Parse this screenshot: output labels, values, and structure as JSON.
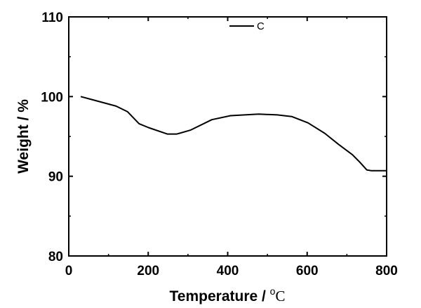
{
  "chart_data": {
    "type": "line",
    "title": "",
    "xlabel": "Temperature / ",
    "xlabel_unit": "oC",
    "ylabel": "Weight / %",
    "xlim": [
      0,
      800
    ],
    "ylim": [
      80,
      110
    ],
    "xticks": [
      "0",
      "200",
      "400",
      "600",
      "800"
    ],
    "yticks": [
      "80",
      "90",
      "100",
      "110"
    ],
    "grid": false,
    "legend": "top-center",
    "series": [
      {
        "name": "C",
        "color": "#000000",
        "x": [
          30,
          60,
          119,
          148,
          177,
          201,
          248,
          272,
          307,
          360,
          407,
          478,
          525,
          561,
          602,
          644,
          679,
          714,
          732,
          750,
          761,
          800
        ],
        "y": [
          100.0,
          99.6,
          98.8,
          98.1,
          96.6,
          96.1,
          95.3,
          95.3,
          95.8,
          97.1,
          97.6,
          97.8,
          97.7,
          97.5,
          96.7,
          95.4,
          94.0,
          92.7,
          91.8,
          90.8,
          90.7,
          90.7
        ]
      }
    ]
  }
}
